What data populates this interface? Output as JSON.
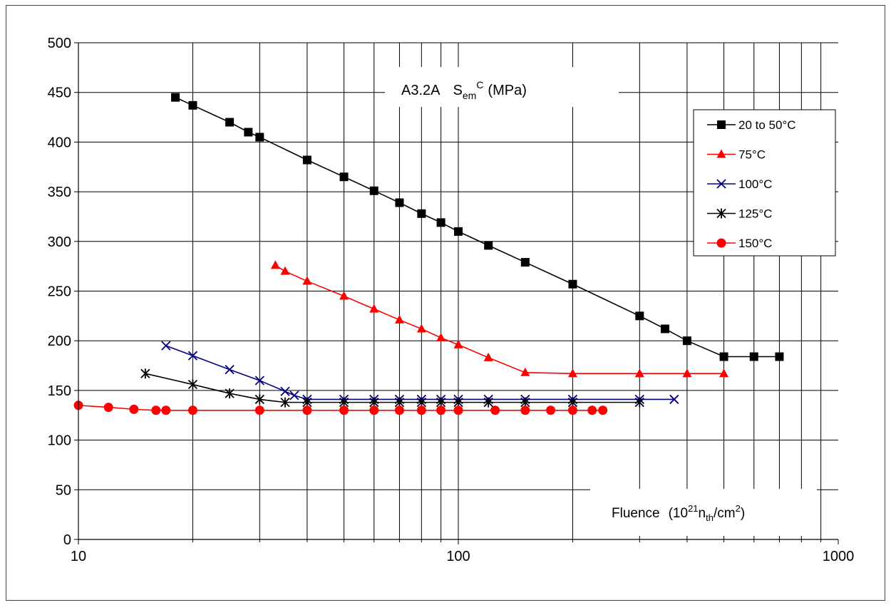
{
  "chart_data": {
    "type": "line",
    "title": {
      "main": "A3.2A",
      "s": "S",
      "sub": "em",
      "sup": "C",
      "unit": "(MPa)"
    },
    "xlabel": {
      "main": "Fluence",
      "open": "(10",
      "sup1": "21",
      "n": "n",
      "sub": "th",
      "slash": "/cm",
      "sup2": "2",
      "close": ")"
    },
    "ylabel": "",
    "x_scale": "log",
    "xlim": [
      10,
      1000
    ],
    "ylim": [
      0,
      500
    ],
    "x_ticks": [
      "10",
      "100",
      "1000"
    ],
    "y_ticks": [
      "0",
      "50",
      "100",
      "150",
      "200",
      "250",
      "300",
      "350",
      "400",
      "450",
      "500"
    ],
    "grid": true,
    "legend_position": "top-right",
    "series": [
      {
        "name": "20 to 50°C",
        "color": "#000000",
        "marker": "square",
        "x": [
          18,
          20,
          25,
          28,
          30,
          40,
          50,
          60,
          70,
          80,
          90,
          100,
          120,
          150,
          200,
          300,
          350,
          400,
          500,
          600,
          700
        ],
        "y": [
          445,
          437,
          420,
          410,
          405,
          382,
          365,
          351,
          339,
          328,
          319,
          310,
          296,
          279,
          257,
          225,
          212,
          200,
          184,
          184,
          184
        ]
      },
      {
        "name": "75°C",
        "color": "#ff0000",
        "marker": "triangle",
        "x": [
          33,
          35,
          40,
          50,
          60,
          70,
          80,
          90,
          100,
          120,
          150,
          200,
          300,
          400,
          500
        ],
        "y": [
          276,
          270,
          260,
          245,
          232,
          221,
          212,
          203,
          196,
          183,
          168,
          167,
          167,
          167,
          167
        ]
      },
      {
        "name": "100°C",
        "color": "#000080",
        "marker": "x",
        "x": [
          17,
          20,
          25,
          30,
          35,
          37,
          40,
          50,
          60,
          70,
          80,
          90,
          100,
          120,
          150,
          200,
          300,
          370
        ],
        "y": [
          195,
          185,
          171,
          160,
          149,
          145,
          141,
          141,
          141,
          141,
          141,
          141,
          141,
          141,
          141,
          141,
          141,
          141
        ]
      },
      {
        "name": "125°C",
        "color": "#000000",
        "marker": "star",
        "x": [
          15,
          20,
          25,
          30,
          35,
          40,
          50,
          60,
          70,
          80,
          90,
          100,
          120,
          150,
          200,
          300
        ],
        "y": [
          167,
          156,
          147,
          141,
          138,
          138,
          138,
          138,
          138,
          138,
          138,
          138,
          138,
          138,
          138,
          138
        ]
      },
      {
        "name": "150°C",
        "color": "#ff0000",
        "marker": "circle",
        "x": [
          10,
          12,
          14,
          16,
          17,
          20,
          30,
          40,
          50,
          60,
          70,
          80,
          90,
          100,
          125,
          150,
          175,
          200,
          225,
          240
        ],
        "y": [
          135,
          133,
          131,
          130,
          130,
          130,
          130,
          130,
          130,
          130,
          130,
          130,
          130,
          130,
          130,
          130,
          130,
          130,
          130,
          130
        ]
      }
    ]
  }
}
